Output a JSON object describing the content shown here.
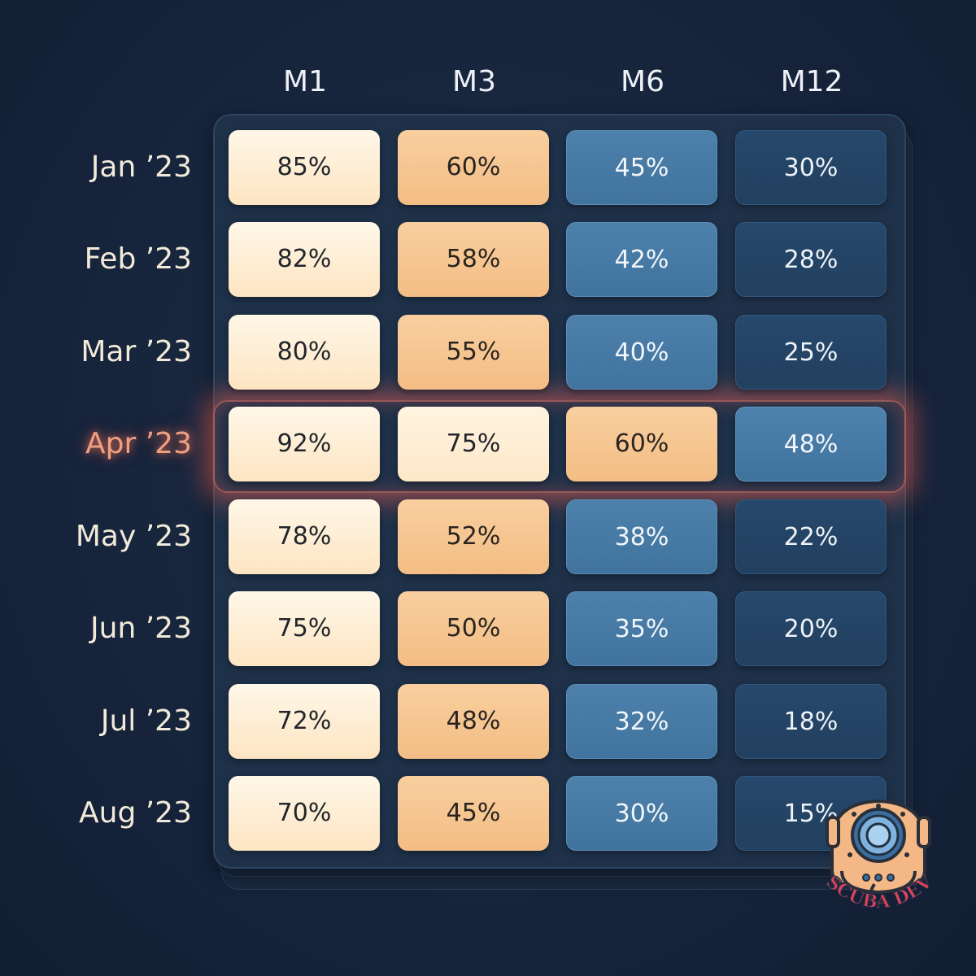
{
  "chart_data": {
    "type": "heatmap",
    "columns": [
      "M1",
      "M3",
      "M6",
      "M12"
    ],
    "rows": [
      "Jan ’23",
      "Feb ’23",
      "Mar ’23",
      "Apr ’23",
      "May ’23",
      "Jun ’23",
      "Jul ’23",
      "Aug ’23"
    ],
    "values": [
      [
        85,
        60,
        45,
        30
      ],
      [
        82,
        58,
        42,
        28
      ],
      [
        80,
        55,
        40,
        25
      ],
      [
        92,
        75,
        60,
        48
      ],
      [
        78,
        52,
        38,
        22
      ],
      [
        75,
        50,
        35,
        20
      ],
      [
        72,
        48,
        32,
        18
      ],
      [
        70,
        45,
        30,
        15
      ]
    ],
    "value_labels": [
      [
        "85%",
        "60%",
        "45%",
        "30%"
      ],
      [
        "82%",
        "58%",
        "42%",
        "28%"
      ],
      [
        "80%",
        "55%",
        "40%",
        "25%"
      ],
      [
        "92%",
        "75%",
        "60%",
        "48%"
      ],
      [
        "78%",
        "52%",
        "38%",
        "22%"
      ],
      [
        "75%",
        "50%",
        "35%",
        "20%"
      ],
      [
        "72%",
        "48%",
        "32%",
        "18%"
      ],
      [
        "70%",
        "45%",
        "30%",
        "15%"
      ]
    ],
    "highlighted_row": "Apr ’23",
    "colors": {
      "high": "#fdf0dc",
      "mid": "#f6c690",
      "low": "#4679a4",
      "lowest": "#24446a",
      "highlight_glow": "#eb5f50"
    }
  },
  "logo": {
    "text": "SCUBA DEV",
    "icon": "diving-helmet-icon"
  }
}
